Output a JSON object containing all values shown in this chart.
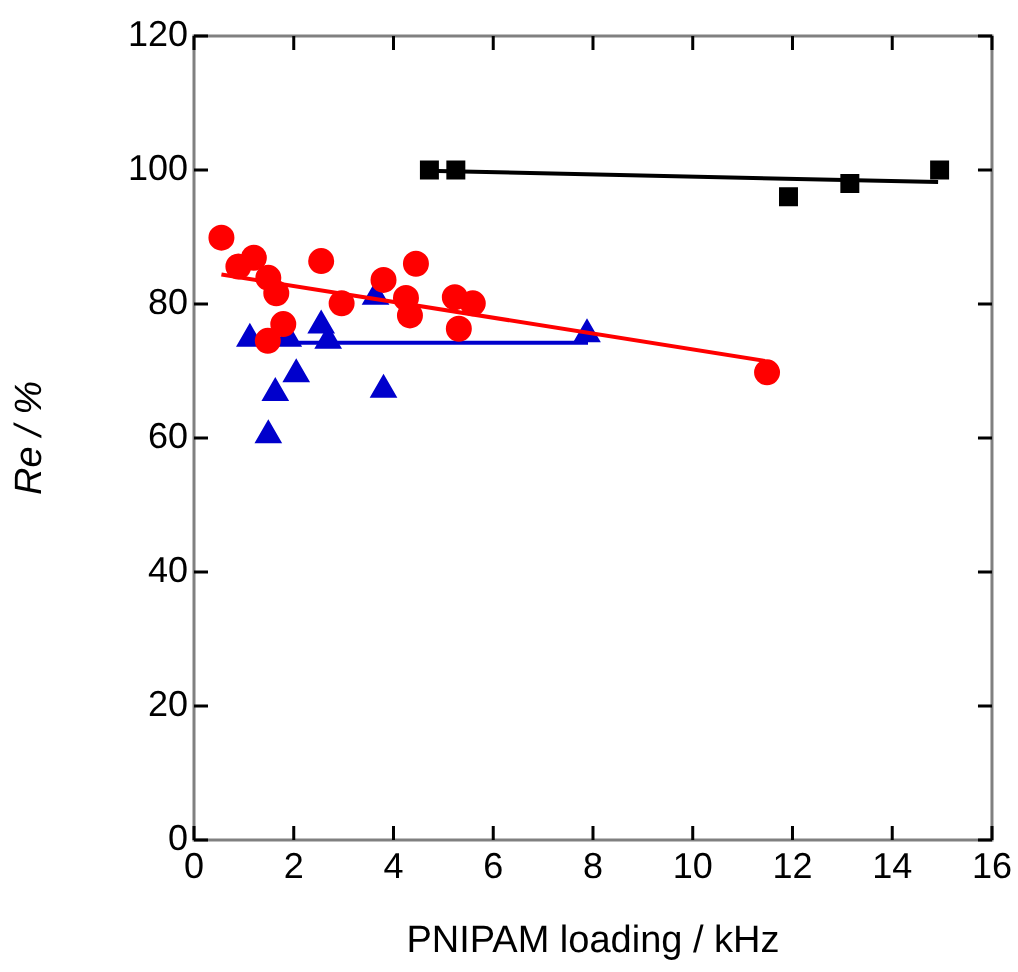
{
  "chart_data": {
    "type": "scatter",
    "xlabel": "PNIPAM loading / kHz",
    "ylabel": "Re / %",
    "xlim": [
      0,
      16
    ],
    "ylim": [
      0,
      120
    ],
    "xticks": [
      0,
      2,
      4,
      6,
      8,
      10,
      12,
      14,
      16
    ],
    "yticks": [
      0,
      20,
      40,
      60,
      80,
      100,
      120
    ],
    "grid": false,
    "legend": false,
    "series": [
      {
        "type": "scatter",
        "marker": "square",
        "color": "#000000",
        "x": [
          4.72,
          5.25,
          11.92,
          13.15,
          14.95
        ],
        "values": [
          100,
          100,
          96,
          98,
          100
        ]
      },
      {
        "type": "line",
        "marker": "none",
        "color": "#000000",
        "x": [
          4.65,
          14.92
        ],
        "values": [
          99.9,
          98.2
        ]
      },
      {
        "type": "scatter",
        "marker": "circle",
        "color": "#ff0000",
        "x": [
          0.55,
          0.89,
          1.2,
          1.49,
          1.65,
          1.79,
          1.48,
          2.55,
          2.96,
          3.8,
          4.45,
          4.25,
          4.33,
          5.23,
          5.59,
          5.31,
          11.49
        ],
        "values": [
          89.9,
          85.6,
          86.9,
          83.9,
          81.6,
          77,
          74.5,
          86.4,
          80.1,
          83.6,
          86,
          80.9,
          78.3,
          81,
          80.1,
          76.3,
          69.8
        ]
      },
      {
        "type": "line",
        "marker": "none",
        "color": "#ff0000",
        "x": [
          0.55,
          11.45
        ],
        "values": [
          84.4,
          71.5
        ]
      },
      {
        "type": "scatter",
        "marker": "triangle",
        "color": "#0000cc",
        "x": [
          1.12,
          1.89,
          2.55,
          2.69,
          3.64,
          7.88,
          2.05,
          1.63,
          1.49,
          3.8
        ],
        "values": [
          74.8,
          74.8,
          76.8,
          74.5,
          81.1,
          75.5,
          69.5,
          66.7,
          60.4,
          67.2
        ]
      },
      {
        "type": "line",
        "marker": "none",
        "color": "#0000cc",
        "x": [
          1.1,
          7.9
        ],
        "values": [
          74.2,
          74.2
        ]
      }
    ]
  }
}
